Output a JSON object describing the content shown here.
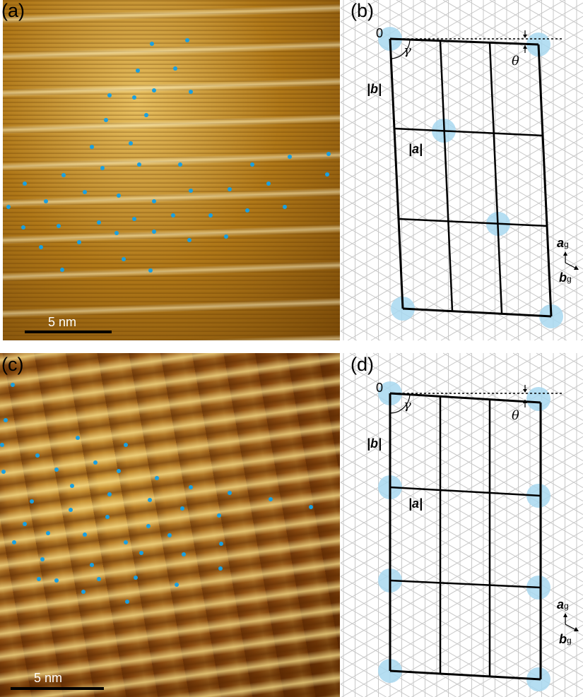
{
  "panels": {
    "a": {
      "label": "(a)",
      "scale_bar": "5 nm"
    },
    "b": {
      "label": "(b)",
      "origin": "0",
      "gamma": "γ",
      "theta": "θ",
      "b_len": "|b|",
      "a_len": "|a|",
      "ag": "a",
      "ag_sub": "g",
      "bg": "b",
      "bg_sub": "g"
    },
    "c": {
      "label": "(c)",
      "scale_bar": "5 nm"
    },
    "d": {
      "label": "(d)",
      "origin": "0",
      "gamma": "γ",
      "theta": "θ",
      "b_len": "|b|",
      "a_len": "|a|",
      "ag": "a",
      "ag_sub": "g",
      "bg": "b",
      "bg_sub": "g"
    }
  },
  "colors": {
    "marker": "#1aa0e0",
    "site_highlight": "#a8d8f0",
    "grid": "#c8c8c8",
    "stm_dark": "#7a4a08",
    "stm_bright": "#fff5c8"
  }
}
